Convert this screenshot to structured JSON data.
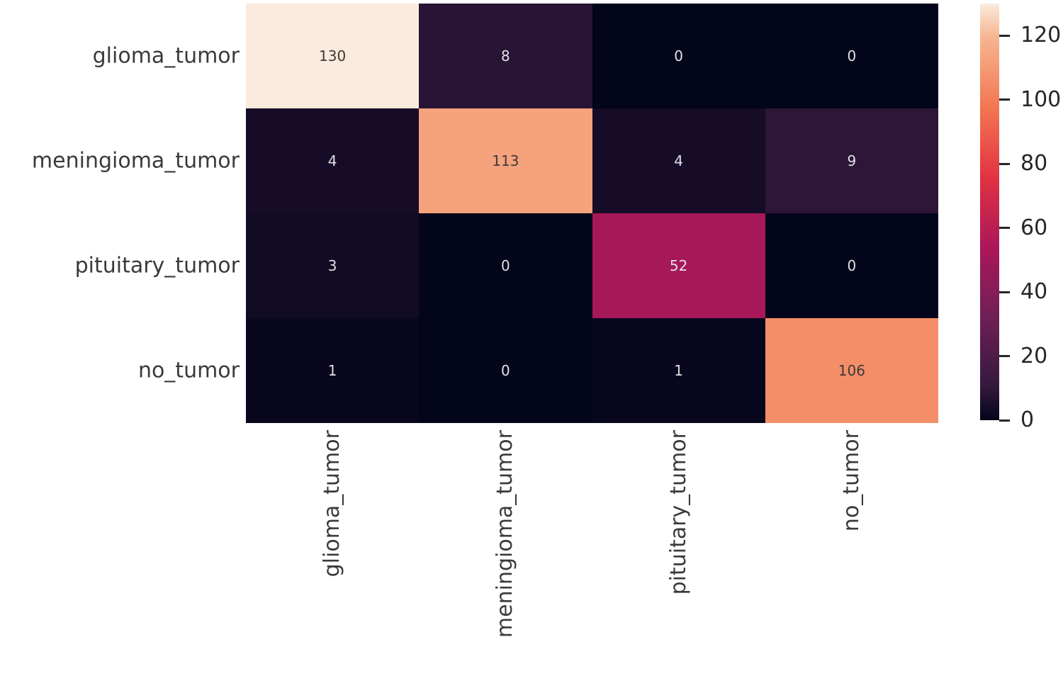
{
  "figure": {
    "background_color": "#ffffff",
    "axis_label_color": "#3a3a3a",
    "colorbar_tick_color": "#262626",
    "annot_text_dark": "#3d3a36",
    "annot_text_light": "#e2dfe4"
  },
  "chart_data": {
    "type": "heatmap",
    "description": "confusion matrix",
    "row_labels": [
      "glioma_tumor",
      "meningioma_tumor",
      "pituitary_tumor",
      "no_tumor"
    ],
    "col_labels": [
      "glioma_tumor",
      "meningioma_tumor",
      "pituitary_tumor",
      "no_tumor"
    ],
    "values": [
      [
        130,
        8,
        0,
        0
      ],
      [
        4,
        113,
        4,
        9
      ],
      [
        3,
        0,
        52,
        0
      ],
      [
        1,
        0,
        1,
        106
      ]
    ],
    "vmin": 0,
    "vmax": 130,
    "colormap": "rocket",
    "gradient_stops": [
      {
        "pos": 0.0,
        "color": "#03051A"
      },
      {
        "pos": 0.083,
        "color": "#35193E"
      },
      {
        "pos": 0.25,
        "color": "#701F57"
      },
      {
        "pos": 0.417,
        "color": "#AD1759"
      },
      {
        "pos": 0.583,
        "color": "#E13342"
      },
      {
        "pos": 0.75,
        "color": "#F37651"
      },
      {
        "pos": 0.917,
        "color": "#F6B48F"
      },
      {
        "pos": 1.0,
        "color": "#FAEBDD"
      }
    ],
    "colorbar_ticks": [
      0,
      20,
      40,
      60,
      80,
      100,
      120
    ],
    "legend_position": "right",
    "grid": false,
    "xlabel": "",
    "ylabel": "",
    "title": ""
  }
}
